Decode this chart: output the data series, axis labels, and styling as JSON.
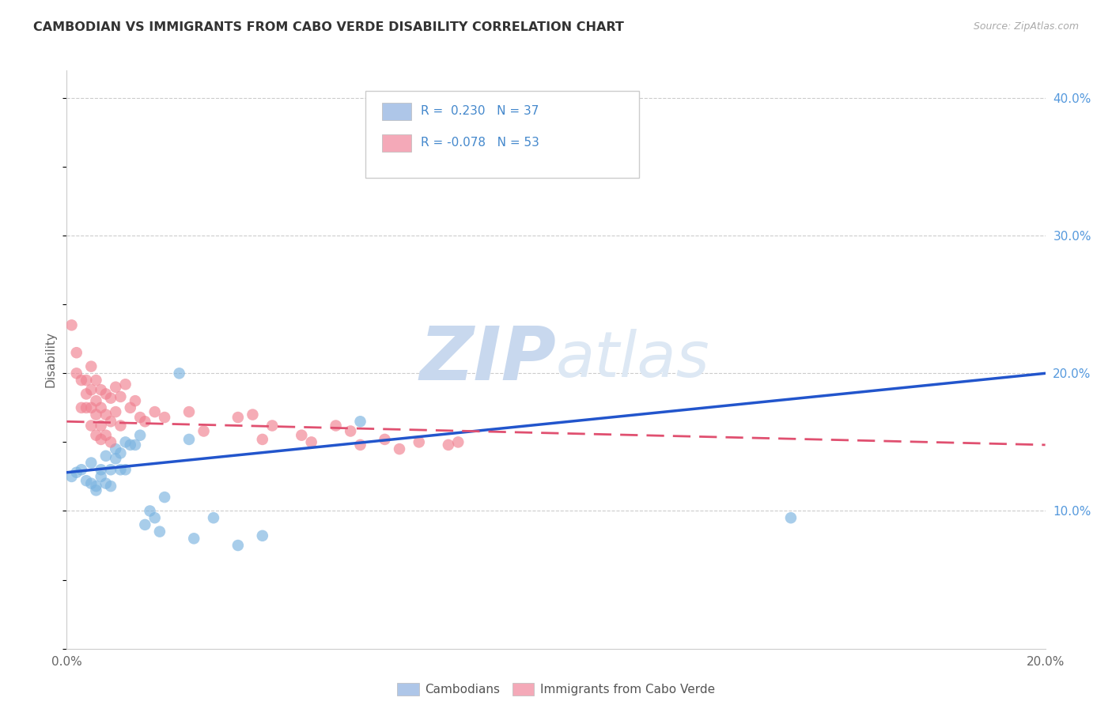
{
  "title": "CAMBODIAN VS IMMIGRANTS FROM CABO VERDE DISABILITY CORRELATION CHART",
  "source": "Source: ZipAtlas.com",
  "ylabel": "Disability",
  "xlim": [
    0.0,
    0.2
  ],
  "ylim": [
    0.0,
    0.42
  ],
  "legend_label_blue": "R =  0.230   N = 37",
  "legend_label_pink": "R = -0.078   N = 53",
  "legend_r_color": "#4488cc",
  "cambodian_color": "#7ab3e0",
  "cabo_verde_color": "#f08090",
  "cambodian_legend_color": "#aec6e8",
  "cabo_verde_legend_color": "#f4a9b8",
  "regression_blue": "#2255cc",
  "regression_pink": "#e05070",
  "watermark_zip": "ZIP",
  "watermark_atlas": "atlas",
  "cambodian_points": [
    [
      0.001,
      0.125
    ],
    [
      0.002,
      0.128
    ],
    [
      0.003,
      0.13
    ],
    [
      0.004,
      0.122
    ],
    [
      0.005,
      0.135
    ],
    [
      0.005,
      0.12
    ],
    [
      0.006,
      0.118
    ],
    [
      0.006,
      0.115
    ],
    [
      0.007,
      0.13
    ],
    [
      0.007,
      0.125
    ],
    [
      0.008,
      0.14
    ],
    [
      0.008,
      0.12
    ],
    [
      0.009,
      0.118
    ],
    [
      0.009,
      0.13
    ],
    [
      0.01,
      0.145
    ],
    [
      0.01,
      0.138
    ],
    [
      0.011,
      0.142
    ],
    [
      0.011,
      0.13
    ],
    [
      0.012,
      0.15
    ],
    [
      0.012,
      0.13
    ],
    [
      0.013,
      0.148
    ],
    [
      0.014,
      0.148
    ],
    [
      0.015,
      0.155
    ],
    [
      0.016,
      0.09
    ],
    [
      0.017,
      0.1
    ],
    [
      0.018,
      0.095
    ],
    [
      0.019,
      0.085
    ],
    [
      0.02,
      0.11
    ],
    [
      0.023,
      0.2
    ],
    [
      0.025,
      0.152
    ],
    [
      0.026,
      0.08
    ],
    [
      0.03,
      0.095
    ],
    [
      0.035,
      0.075
    ],
    [
      0.04,
      0.082
    ],
    [
      0.06,
      0.165
    ],
    [
      0.095,
      0.36
    ],
    [
      0.148,
      0.095
    ]
  ],
  "cabo_verde_points": [
    [
      0.001,
      0.235
    ],
    [
      0.002,
      0.215
    ],
    [
      0.002,
      0.2
    ],
    [
      0.003,
      0.195
    ],
    [
      0.003,
      0.175
    ],
    [
      0.004,
      0.195
    ],
    [
      0.004,
      0.185
    ],
    [
      0.004,
      0.175
    ],
    [
      0.005,
      0.205
    ],
    [
      0.005,
      0.188
    ],
    [
      0.005,
      0.175
    ],
    [
      0.005,
      0.162
    ],
    [
      0.006,
      0.195
    ],
    [
      0.006,
      0.18
    ],
    [
      0.006,
      0.17
    ],
    [
      0.006,
      0.155
    ],
    [
      0.007,
      0.188
    ],
    [
      0.007,
      0.175
    ],
    [
      0.007,
      0.162
    ],
    [
      0.007,
      0.152
    ],
    [
      0.008,
      0.185
    ],
    [
      0.008,
      0.17
    ],
    [
      0.008,
      0.155
    ],
    [
      0.009,
      0.182
    ],
    [
      0.009,
      0.165
    ],
    [
      0.009,
      0.15
    ],
    [
      0.01,
      0.19
    ],
    [
      0.01,
      0.172
    ],
    [
      0.011,
      0.183
    ],
    [
      0.011,
      0.162
    ],
    [
      0.012,
      0.192
    ],
    [
      0.013,
      0.175
    ],
    [
      0.014,
      0.18
    ],
    [
      0.015,
      0.168
    ],
    [
      0.016,
      0.165
    ],
    [
      0.018,
      0.172
    ],
    [
      0.02,
      0.168
    ],
    [
      0.025,
      0.172
    ],
    [
      0.028,
      0.158
    ],
    [
      0.035,
      0.168
    ],
    [
      0.038,
      0.17
    ],
    [
      0.04,
      0.152
    ],
    [
      0.042,
      0.162
    ],
    [
      0.048,
      0.155
    ],
    [
      0.05,
      0.15
    ],
    [
      0.055,
      0.162
    ],
    [
      0.058,
      0.158
    ],
    [
      0.06,
      0.148
    ],
    [
      0.065,
      0.152
    ],
    [
      0.068,
      0.145
    ],
    [
      0.072,
      0.15
    ],
    [
      0.078,
      0.148
    ],
    [
      0.08,
      0.15
    ]
  ],
  "blue_line_x": [
    0.0,
    0.2
  ],
  "blue_line_y": [
    0.128,
    0.2
  ],
  "pink_line_x": [
    0.0,
    0.2
  ],
  "pink_line_y": [
    0.165,
    0.148
  ]
}
